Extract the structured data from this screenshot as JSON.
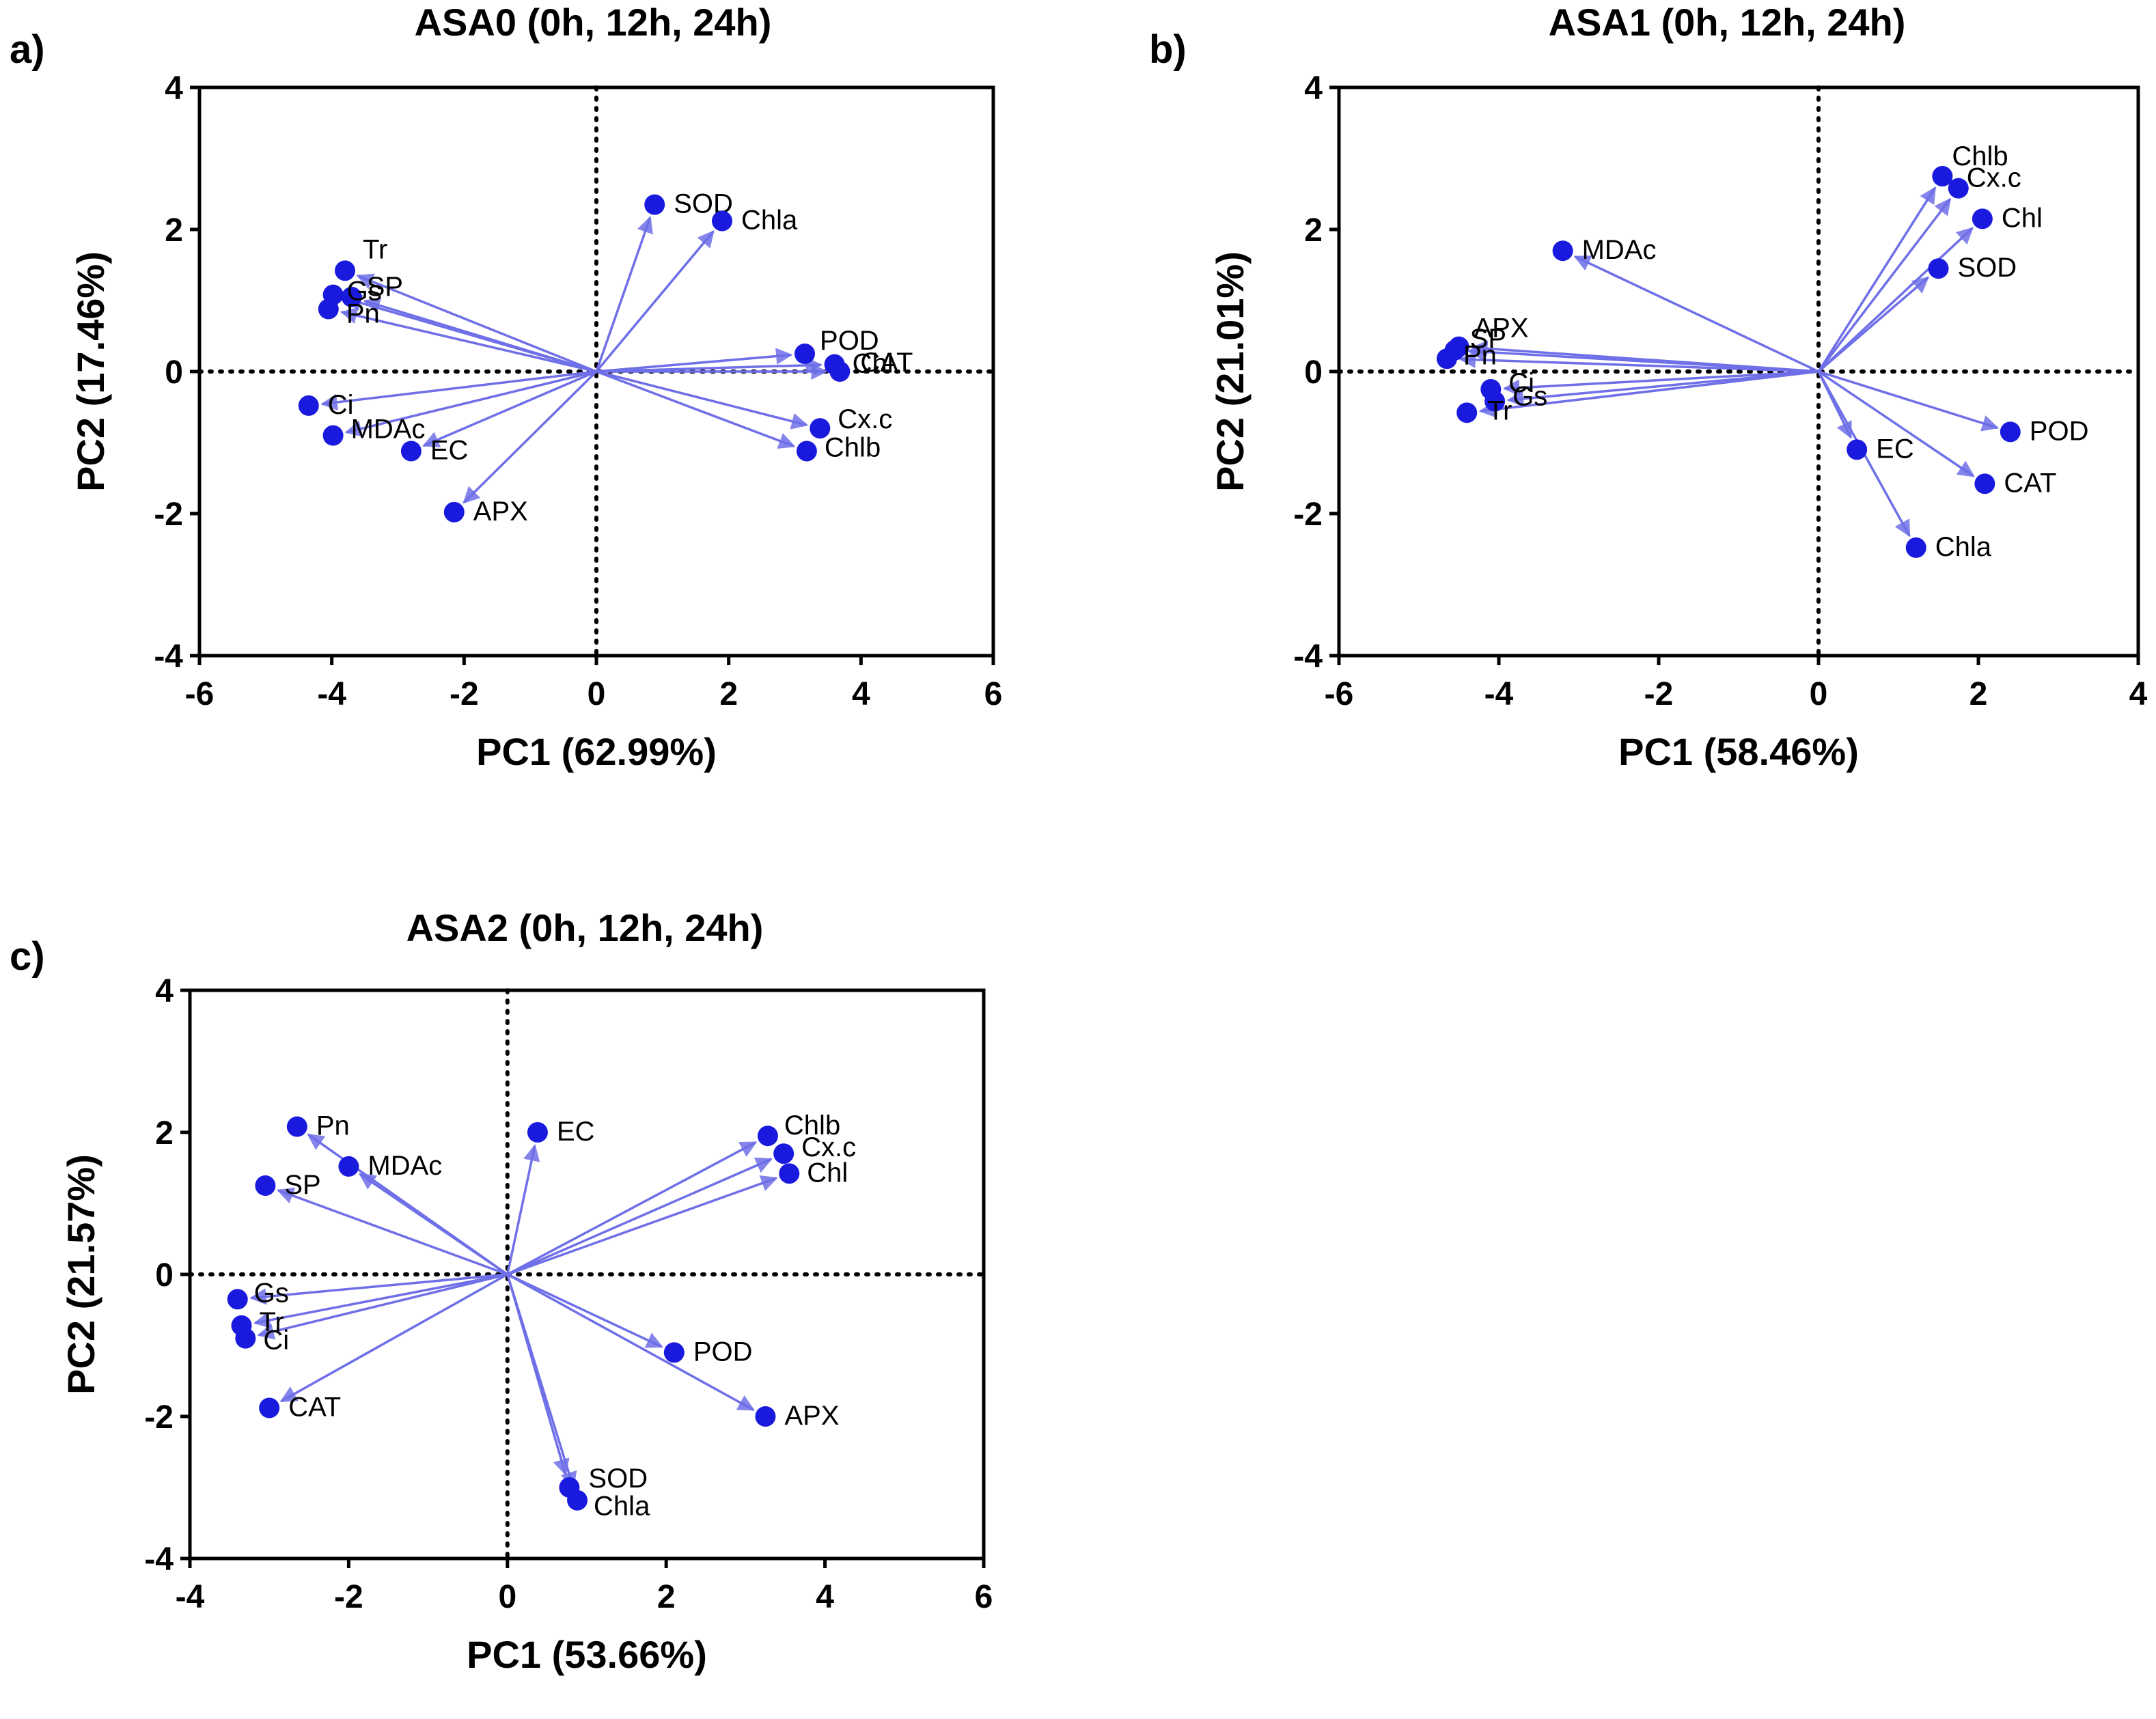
{
  "figure": {
    "panels": [
      {
        "id": "a",
        "label": "a)",
        "title": "ASA0 (0h, 12h, 24h)"
      },
      {
        "id": "b",
        "label": "b)",
        "title": "ASA1 (0h, 12h, 24h)"
      },
      {
        "id": "c",
        "label": "c)",
        "title": "ASA2 (0h, 12h, 24h)"
      }
    ]
  },
  "colors": {
    "point": "#1a1adf",
    "vector": "#6f6fe8",
    "axis": "#000000"
  },
  "chart_data": [
    {
      "type": "scatter",
      "subtype": "pca-loading-plot",
      "panel": "a)",
      "title": "ASA0 (0h, 12h, 24h)",
      "xlabel": "PC1 (62.99%)",
      "ylabel": "PC2 (17.46%)",
      "xlim": [
        -6,
        6
      ],
      "ylim": [
        -4,
        4
      ],
      "xticks": [
        -6,
        -4,
        -2,
        0,
        2,
        4,
        6
      ],
      "yticks": [
        -4,
        -2,
        0,
        2,
        4
      ],
      "grid": false,
      "zero_lines": true,
      "points": [
        {
          "label": "SOD",
          "x": 0.88,
          "y": 2.35
        },
        {
          "label": "Chla",
          "x": 1.9,
          "y": 2.12
        },
        {
          "label": "Tr",
          "x": -3.8,
          "y": 1.42
        },
        {
          "label": "SP",
          "x": -3.7,
          "y": 1.05
        },
        {
          "label": "Gs",
          "x": -3.98,
          "y": 1.08
        },
        {
          "label": "Pn",
          "x": -4.05,
          "y": 0.88
        },
        {
          "label": "POD",
          "x": 3.15,
          "y": 0.25
        },
        {
          "label": "Chl",
          "x": 3.6,
          "y": 0.1
        },
        {
          "label": "CAT",
          "x": 3.68,
          "y": 0.0
        },
        {
          "label": "Ci",
          "x": -4.35,
          "y": -0.48
        },
        {
          "label": "MDAc",
          "x": -3.98,
          "y": -0.9
        },
        {
          "label": "EC",
          "x": -2.8,
          "y": -1.12
        },
        {
          "label": "Cx.c",
          "x": 3.38,
          "y": -0.8
        },
        {
          "label": "Chlb",
          "x": 3.18,
          "y": -1.12
        },
        {
          "label": "APX",
          "x": -2.15,
          "y": -1.98
        }
      ]
    },
    {
      "type": "scatter",
      "subtype": "pca-loading-plot",
      "panel": "b)",
      "title": "ASA1 (0h, 12h, 24h)",
      "xlabel": "PC1 (58.46%)",
      "ylabel": "PC2 (21.01%)",
      "xlim": [
        -6,
        4
      ],
      "ylim": [
        -4,
        4
      ],
      "xticks": [
        -6,
        -4,
        -2,
        0,
        2,
        4
      ],
      "yticks": [
        -4,
        -2,
        0,
        2,
        4
      ],
      "grid": false,
      "zero_lines": true,
      "points": [
        {
          "label": "Chlb",
          "x": 1.55,
          "y": 2.75
        },
        {
          "label": "Cx.c",
          "x": 1.75,
          "y": 2.58
        },
        {
          "label": "Chl",
          "x": 2.05,
          "y": 2.15
        },
        {
          "label": "SOD",
          "x": 1.5,
          "y": 1.45
        },
        {
          "label": "MDAc",
          "x": -3.2,
          "y": 1.7
        },
        {
          "label": "APX",
          "x": -4.5,
          "y": 0.35
        },
        {
          "label": "SP",
          "x": -4.55,
          "y": 0.3
        },
        {
          "label": "Pn",
          "x": -4.65,
          "y": 0.18
        },
        {
          "label": "Ci",
          "x": -4.1,
          "y": -0.25
        },
        {
          "label": "Gs",
          "x": -4.05,
          "y": -0.42
        },
        {
          "label": "Tr",
          "x": -4.4,
          "y": -0.58
        },
        {
          "label": "EC",
          "x": 0.48,
          "y": -1.1
        },
        {
          "label": "POD",
          "x": 2.4,
          "y": -0.85
        },
        {
          "label": "CAT",
          "x": 2.08,
          "y": -1.58
        },
        {
          "label": "Chla",
          "x": 1.22,
          "y": -2.48
        }
      ]
    },
    {
      "type": "scatter",
      "subtype": "pca-loading-plot",
      "panel": "c)",
      "title": "ASA2 (0h, 12h, 24h)",
      "xlabel": "PC1 (53.66%)",
      "ylabel": "PC2 (21.57%)",
      "xlim": [
        -4,
        6
      ],
      "ylim": [
        -4,
        4
      ],
      "xticks": [
        -4,
        -2,
        0,
        2,
        4,
        6
      ],
      "yticks": [
        -4,
        -2,
        0,
        2,
        4
      ],
      "grid": false,
      "zero_lines": true,
      "points": [
        {
          "label": "Pn",
          "x": -2.65,
          "y": 2.08
        },
        {
          "label": "MDAc",
          "x": -2.0,
          "y": 1.52
        },
        {
          "label": "SP",
          "x": -3.05,
          "y": 1.25
        },
        {
          "label": "EC",
          "x": 0.38,
          "y": 2.0
        },
        {
          "label": "Chlb",
          "x": 3.28,
          "y": 1.95
        },
        {
          "label": "Cx.c",
          "x": 3.48,
          "y": 1.7
        },
        {
          "label": "Chl",
          "x": 3.55,
          "y": 1.42
        },
        {
          "label": "Gs",
          "x": -3.4,
          "y": -0.35
        },
        {
          "label": "Tr",
          "x": -3.35,
          "y": -0.72
        },
        {
          "label": "Ci",
          "x": -3.3,
          "y": -0.9
        },
        {
          "label": "CAT",
          "x": -3.0,
          "y": -1.88
        },
        {
          "label": "POD",
          "x": 2.1,
          "y": -1.1
        },
        {
          "label": "APX",
          "x": 3.25,
          "y": -2.0
        },
        {
          "label": "SOD",
          "x": 0.78,
          "y": -3.0
        },
        {
          "label": "Chla",
          "x": 0.88,
          "y": -3.18
        }
      ]
    }
  ]
}
